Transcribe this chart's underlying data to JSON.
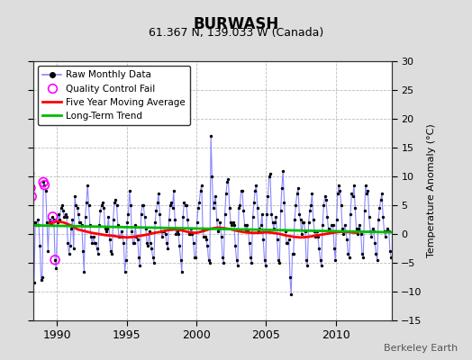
{
  "title": "BURWASH",
  "subtitle": "61.367 N, 139.033 W (Canada)",
  "ylabel": "Temperature Anomaly (°C)",
  "watermark": "Berkeley Earth",
  "ylim": [
    -15,
    30
  ],
  "yticks": [
    -15,
    -10,
    -5,
    0,
    5,
    10,
    15,
    20,
    25,
    30
  ],
  "xlim": [
    1988.3,
    2014.0
  ],
  "xticks": [
    1990,
    1995,
    2000,
    2005,
    2010
  ],
  "bg_color": "#dddddd",
  "plot_bg_color": "#ffffff",
  "grid_color": "#bbbbbb",
  "raw_line_color": "#8888ff",
  "raw_marker_color": "#000000",
  "qc_marker_color": "#ff00ff",
  "moving_avg_color": "#ff0000",
  "trend_color": "#00bb00",
  "legend_labels": [
    "Raw Monthly Data",
    "Quality Control Fail",
    "Five Year Moving Average",
    "Long-Term Trend"
  ],
  "raw_data": [
    [
      1988.042,
      10.5
    ],
    [
      1988.125,
      8.0
    ],
    [
      1988.208,
      6.5
    ],
    [
      1988.292,
      2.0
    ],
    [
      1988.375,
      -8.5
    ],
    [
      1988.458,
      2.0
    ],
    [
      1988.542,
      1.5
    ],
    [
      1988.625,
      2.5
    ],
    [
      1988.708,
      1.5
    ],
    [
      1988.792,
      -2.0
    ],
    [
      1988.875,
      -8.0
    ],
    [
      1988.958,
      -7.5
    ],
    [
      1989.042,
      9.0
    ],
    [
      1989.125,
      8.5
    ],
    [
      1989.208,
      7.5
    ],
    [
      1989.292,
      2.0
    ],
    [
      1989.375,
      -3.0
    ],
    [
      1989.458,
      2.5
    ],
    [
      1989.542,
      2.0
    ],
    [
      1989.625,
      1.5
    ],
    [
      1989.708,
      3.0
    ],
    [
      1989.792,
      2.5
    ],
    [
      1989.875,
      -4.5
    ],
    [
      1989.958,
      -6.0
    ],
    [
      1990.042,
      2.0
    ],
    [
      1990.125,
      3.5
    ],
    [
      1990.208,
      2.5
    ],
    [
      1990.292,
      4.5
    ],
    [
      1990.375,
      5.0
    ],
    [
      1990.458,
      4.0
    ],
    [
      1990.542,
      3.0
    ],
    [
      1990.625,
      3.5
    ],
    [
      1990.708,
      3.0
    ],
    [
      1990.792,
      -1.5
    ],
    [
      1990.875,
      -3.5
    ],
    [
      1990.958,
      -2.0
    ],
    [
      1991.042,
      1.0
    ],
    [
      1991.125,
      2.5
    ],
    [
      1991.208,
      -2.5
    ],
    [
      1991.292,
      6.5
    ],
    [
      1991.375,
      5.0
    ],
    [
      1991.458,
      4.5
    ],
    [
      1991.542,
      3.5
    ],
    [
      1991.625,
      2.0
    ],
    [
      1991.708,
      2.0
    ],
    [
      1991.792,
      1.5
    ],
    [
      1991.875,
      -3.0
    ],
    [
      1991.958,
      -6.5
    ],
    [
      1992.042,
      3.0
    ],
    [
      1992.125,
      5.5
    ],
    [
      1992.208,
      8.5
    ],
    [
      1992.292,
      5.0
    ],
    [
      1992.375,
      1.5
    ],
    [
      1992.458,
      -0.5
    ],
    [
      1992.542,
      -1.5
    ],
    [
      1992.625,
      -0.5
    ],
    [
      1992.708,
      -1.5
    ],
    [
      1992.792,
      -1.5
    ],
    [
      1992.875,
      -2.5
    ],
    [
      1992.958,
      -3.5
    ],
    [
      1993.042,
      1.5
    ],
    [
      1993.125,
      4.0
    ],
    [
      1993.208,
      5.0
    ],
    [
      1993.292,
      5.5
    ],
    [
      1993.375,
      4.5
    ],
    [
      1993.458,
      1.0
    ],
    [
      1993.542,
      0.5
    ],
    [
      1993.625,
      1.0
    ],
    [
      1993.708,
      3.0
    ],
    [
      1993.792,
      -1.0
    ],
    [
      1993.875,
      -3.0
    ],
    [
      1993.958,
      -3.5
    ],
    [
      1994.042,
      2.5
    ],
    [
      1994.125,
      5.5
    ],
    [
      1994.208,
      6.0
    ],
    [
      1994.292,
      5.0
    ],
    [
      1994.375,
      1.5
    ],
    [
      1994.458,
      -0.5
    ],
    [
      1994.542,
      -0.5
    ],
    [
      1994.625,
      0.5
    ],
    [
      1994.708,
      -0.5
    ],
    [
      1994.792,
      -1.5
    ],
    [
      1994.875,
      -6.5
    ],
    [
      1994.958,
      -4.5
    ],
    [
      1995.042,
      2.0
    ],
    [
      1995.125,
      3.5
    ],
    [
      1995.208,
      7.5
    ],
    [
      1995.292,
      5.0
    ],
    [
      1995.375,
      0.5
    ],
    [
      1995.458,
      -1.5
    ],
    [
      1995.542,
      -1.5
    ],
    [
      1995.625,
      1.5
    ],
    [
      1995.708,
      -0.5
    ],
    [
      1995.792,
      -1.0
    ],
    [
      1995.875,
      -4.0
    ],
    [
      1995.958,
      -5.5
    ],
    [
      1996.042,
      3.5
    ],
    [
      1996.125,
      5.0
    ],
    [
      1996.208,
      5.0
    ],
    [
      1996.292,
      3.0
    ],
    [
      1996.375,
      1.0
    ],
    [
      1996.458,
      -1.5
    ],
    [
      1996.542,
      -2.0
    ],
    [
      1996.625,
      0.5
    ],
    [
      1996.708,
      -1.5
    ],
    [
      1996.792,
      -2.5
    ],
    [
      1996.875,
      -4.0
    ],
    [
      1996.958,
      -5.0
    ],
    [
      1997.042,
      2.0
    ],
    [
      1997.125,
      4.0
    ],
    [
      1997.208,
      5.5
    ],
    [
      1997.292,
      7.0
    ],
    [
      1997.375,
      3.5
    ],
    [
      1997.458,
      0.5
    ],
    [
      1997.542,
      -0.5
    ],
    [
      1997.625,
      0.5
    ],
    [
      1997.708,
      0.5
    ],
    [
      1997.792,
      0.0
    ],
    [
      1997.875,
      -1.5
    ],
    [
      1997.958,
      -2.5
    ],
    [
      1998.042,
      2.5
    ],
    [
      1998.125,
      5.0
    ],
    [
      1998.208,
      5.5
    ],
    [
      1998.292,
      4.5
    ],
    [
      1998.375,
      7.5
    ],
    [
      1998.458,
      2.5
    ],
    [
      1998.542,
      0.0
    ],
    [
      1998.625,
      0.5
    ],
    [
      1998.708,
      0.0
    ],
    [
      1998.792,
      -2.0
    ],
    [
      1998.875,
      -4.5
    ],
    [
      1998.958,
      -6.5
    ],
    [
      1999.042,
      3.0
    ],
    [
      1999.125,
      5.5
    ],
    [
      1999.208,
      5.0
    ],
    [
      1999.292,
      5.0
    ],
    [
      1999.375,
      2.5
    ],
    [
      1999.458,
      0.0
    ],
    [
      1999.542,
      0.0
    ],
    [
      1999.625,
      1.0
    ],
    [
      1999.708,
      0.0
    ],
    [
      1999.792,
      -1.5
    ],
    [
      1999.875,
      -4.0
    ],
    [
      1999.958,
      -4.0
    ],
    [
      2000.042,
      2.0
    ],
    [
      2000.125,
      4.5
    ],
    [
      2000.208,
      5.5
    ],
    [
      2000.292,
      7.5
    ],
    [
      2000.375,
      8.5
    ],
    [
      2000.458,
      1.0
    ],
    [
      2000.542,
      -0.5
    ],
    [
      2000.625,
      -0.5
    ],
    [
      2000.708,
      -1.0
    ],
    [
      2000.792,
      -2.0
    ],
    [
      2000.875,
      -4.5
    ],
    [
      2000.958,
      -5.0
    ],
    [
      2001.042,
      17.0
    ],
    [
      2001.125,
      10.0
    ],
    [
      2001.208,
      4.5
    ],
    [
      2001.292,
      5.5
    ],
    [
      2001.375,
      6.5
    ],
    [
      2001.458,
      2.5
    ],
    [
      2001.542,
      0.5
    ],
    [
      2001.625,
      1.0
    ],
    [
      2001.708,
      2.0
    ],
    [
      2001.792,
      -0.5
    ],
    [
      2001.875,
      -4.0
    ],
    [
      2001.958,
      -5.0
    ],
    [
      2002.042,
      3.5
    ],
    [
      2002.125,
      7.0
    ],
    [
      2002.208,
      9.0
    ],
    [
      2002.292,
      9.5
    ],
    [
      2002.375,
      4.5
    ],
    [
      2002.458,
      2.0
    ],
    [
      2002.542,
      1.5
    ],
    [
      2002.625,
      2.0
    ],
    [
      2002.708,
      1.5
    ],
    [
      2002.792,
      -2.0
    ],
    [
      2002.875,
      -4.5
    ],
    [
      2002.958,
      -5.5
    ],
    [
      2003.042,
      4.5
    ],
    [
      2003.125,
      5.0
    ],
    [
      2003.208,
      7.5
    ],
    [
      2003.292,
      7.5
    ],
    [
      2003.375,
      4.0
    ],
    [
      2003.458,
      1.5
    ],
    [
      2003.542,
      0.5
    ],
    [
      2003.625,
      1.5
    ],
    [
      2003.708,
      0.5
    ],
    [
      2003.792,
      -1.5
    ],
    [
      2003.875,
      -4.0
    ],
    [
      2003.958,
      -5.0
    ],
    [
      2004.042,
      3.0
    ],
    [
      2004.125,
      5.5
    ],
    [
      2004.208,
      7.5
    ],
    [
      2004.292,
      8.5
    ],
    [
      2004.375,
      4.5
    ],
    [
      2004.458,
      0.5
    ],
    [
      2004.542,
      1.0
    ],
    [
      2004.625,
      1.5
    ],
    [
      2004.708,
      3.5
    ],
    [
      2004.792,
      -1.0
    ],
    [
      2004.875,
      -4.5
    ],
    [
      2004.958,
      -5.5
    ],
    [
      2005.042,
      3.5
    ],
    [
      2005.125,
      6.5
    ],
    [
      2005.208,
      10.0
    ],
    [
      2005.292,
      10.5
    ],
    [
      2005.375,
      3.5
    ],
    [
      2005.458,
      2.0
    ],
    [
      2005.542,
      1.0
    ],
    [
      2005.625,
      2.0
    ],
    [
      2005.708,
      3.0
    ],
    [
      2005.792,
      -1.0
    ],
    [
      2005.875,
      -4.5
    ],
    [
      2005.958,
      -5.0
    ],
    [
      2006.042,
      4.0
    ],
    [
      2006.125,
      8.0
    ],
    [
      2006.208,
      11.0
    ],
    [
      2006.292,
      5.5
    ],
    [
      2006.375,
      0.5
    ],
    [
      2006.458,
      -1.5
    ],
    [
      2006.542,
      -1.5
    ],
    [
      2006.625,
      -1.0
    ],
    [
      2006.708,
      -7.5
    ],
    [
      2006.792,
      -10.5
    ],
    [
      2006.875,
      -3.5
    ],
    [
      2006.958,
      -3.5
    ],
    [
      2007.042,
      2.5
    ],
    [
      2007.125,
      5.0
    ],
    [
      2007.208,
      7.0
    ],
    [
      2007.292,
      8.0
    ],
    [
      2007.375,
      3.5
    ],
    [
      2007.458,
      2.5
    ],
    [
      2007.542,
      0.0
    ],
    [
      2007.625,
      2.0
    ],
    [
      2007.708,
      2.0
    ],
    [
      2007.792,
      0.5
    ],
    [
      2007.875,
      -4.5
    ],
    [
      2007.958,
      -5.5
    ],
    [
      2008.042,
      2.0
    ],
    [
      2008.125,
      4.0
    ],
    [
      2008.208,
      5.0
    ],
    [
      2008.292,
      7.0
    ],
    [
      2008.375,
      2.5
    ],
    [
      2008.458,
      0.5
    ],
    [
      2008.542,
      -0.5
    ],
    [
      2008.625,
      0.5
    ],
    [
      2008.708,
      -0.5
    ],
    [
      2008.792,
      -2.5
    ],
    [
      2008.875,
      -4.5
    ],
    [
      2008.958,
      -5.5
    ],
    [
      2009.042,
      1.5
    ],
    [
      2009.125,
      5.0
    ],
    [
      2009.208,
      6.5
    ],
    [
      2009.292,
      6.0
    ],
    [
      2009.375,
      3.0
    ],
    [
      2009.458,
      1.0
    ],
    [
      2009.542,
      0.5
    ],
    [
      2009.625,
      0.5
    ],
    [
      2009.708,
      1.5
    ],
    [
      2009.792,
      1.5
    ],
    [
      2009.875,
      -2.5
    ],
    [
      2009.958,
      -4.5
    ],
    [
      2010.042,
      2.5
    ],
    [
      2010.125,
      7.0
    ],
    [
      2010.208,
      8.5
    ],
    [
      2010.292,
      7.5
    ],
    [
      2010.375,
      5.0
    ],
    [
      2010.458,
      1.0
    ],
    [
      2010.542,
      0.0
    ],
    [
      2010.625,
      1.5
    ],
    [
      2010.708,
      0.5
    ],
    [
      2010.792,
      -1.0
    ],
    [
      2010.875,
      -3.5
    ],
    [
      2010.958,
      -4.0
    ],
    [
      2011.042,
      3.5
    ],
    [
      2011.125,
      7.0
    ],
    [
      2011.208,
      6.5
    ],
    [
      2011.292,
      8.5
    ],
    [
      2011.375,
      4.5
    ],
    [
      2011.458,
      1.0
    ],
    [
      2011.542,
      0.0
    ],
    [
      2011.625,
      1.0
    ],
    [
      2011.708,
      1.5
    ],
    [
      2011.792,
      0.0
    ],
    [
      2011.875,
      -3.5
    ],
    [
      2011.958,
      -4.0
    ],
    [
      2012.042,
      4.0
    ],
    [
      2012.125,
      8.5
    ],
    [
      2012.208,
      7.0
    ],
    [
      2012.292,
      7.5
    ],
    [
      2012.375,
      3.0
    ],
    [
      2012.458,
      0.5
    ],
    [
      2012.542,
      -0.5
    ],
    [
      2012.625,
      1.0
    ],
    [
      2012.708,
      0.5
    ],
    [
      2012.792,
      -1.5
    ],
    [
      2012.875,
      -3.5
    ],
    [
      2012.958,
      -4.5
    ],
    [
      2013.042,
      2.5
    ],
    [
      2013.125,
      4.5
    ],
    [
      2013.208,
      6.0
    ],
    [
      2013.292,
      7.0
    ],
    [
      2013.375,
      3.0
    ],
    [
      2013.458,
      0.5
    ],
    [
      2013.542,
      -0.5
    ],
    [
      2013.625,
      0.5
    ],
    [
      2013.708,
      1.0
    ],
    [
      2013.792,
      0.5
    ],
    [
      2013.875,
      -3.0
    ],
    [
      2013.958,
      -4.0
    ]
  ],
  "qc_fail_points": [
    [
      1988.042,
      10.5
    ],
    [
      1988.125,
      8.0
    ],
    [
      1988.208,
      6.5
    ],
    [
      1989.042,
      9.0
    ],
    [
      1989.125,
      8.5
    ],
    [
      1989.708,
      3.0
    ],
    [
      1989.875,
      -4.5
    ]
  ],
  "moving_avg": [
    [
      1989.5,
      1.8
    ],
    [
      1990.0,
      2.2
    ],
    [
      1990.5,
      2.0
    ],
    [
      1991.0,
      1.5
    ],
    [
      1991.5,
      0.8
    ],
    [
      1992.0,
      0.5
    ],
    [
      1992.5,
      0.2
    ],
    [
      1993.0,
      0.0
    ],
    [
      1993.5,
      -0.2
    ],
    [
      1994.0,
      -0.3
    ],
    [
      1994.5,
      -0.5
    ],
    [
      1995.0,
      -0.6
    ],
    [
      1995.5,
      -0.5
    ],
    [
      1996.0,
      -0.3
    ],
    [
      1996.5,
      -0.1
    ],
    [
      1997.0,
      0.2
    ],
    [
      1997.5,
      0.4
    ],
    [
      1998.0,
      0.7
    ],
    [
      1998.5,
      0.8
    ],
    [
      1999.0,
      0.6
    ],
    [
      1999.5,
      0.3
    ],
    [
      2000.0,
      0.2
    ],
    [
      2000.5,
      0.5
    ],
    [
      2001.0,
      0.9
    ],
    [
      2001.5,
      1.1
    ],
    [
      2002.0,
      1.0
    ],
    [
      2002.5,
      0.8
    ],
    [
      2003.0,
      0.5
    ],
    [
      2003.5,
      0.3
    ],
    [
      2004.0,
      0.2
    ],
    [
      2004.5,
      0.2
    ],
    [
      2005.0,
      0.3
    ],
    [
      2005.5,
      0.2
    ],
    [
      2006.0,
      0.0
    ],
    [
      2006.5,
      -0.3
    ],
    [
      2007.0,
      -0.5
    ],
    [
      2007.5,
      -0.6
    ],
    [
      2008.0,
      -0.5
    ],
    [
      2008.5,
      -0.3
    ],
    [
      2009.0,
      -0.1
    ],
    [
      2009.5,
      0.1
    ],
    [
      2010.0,
      0.3
    ],
    [
      2010.5,
      0.4
    ],
    [
      2011.0,
      0.3
    ],
    [
      2011.5,
      0.2
    ]
  ],
  "trend_line": [
    [
      1988.3,
      1.5
    ],
    [
      2013.958,
      0.3
    ]
  ]
}
